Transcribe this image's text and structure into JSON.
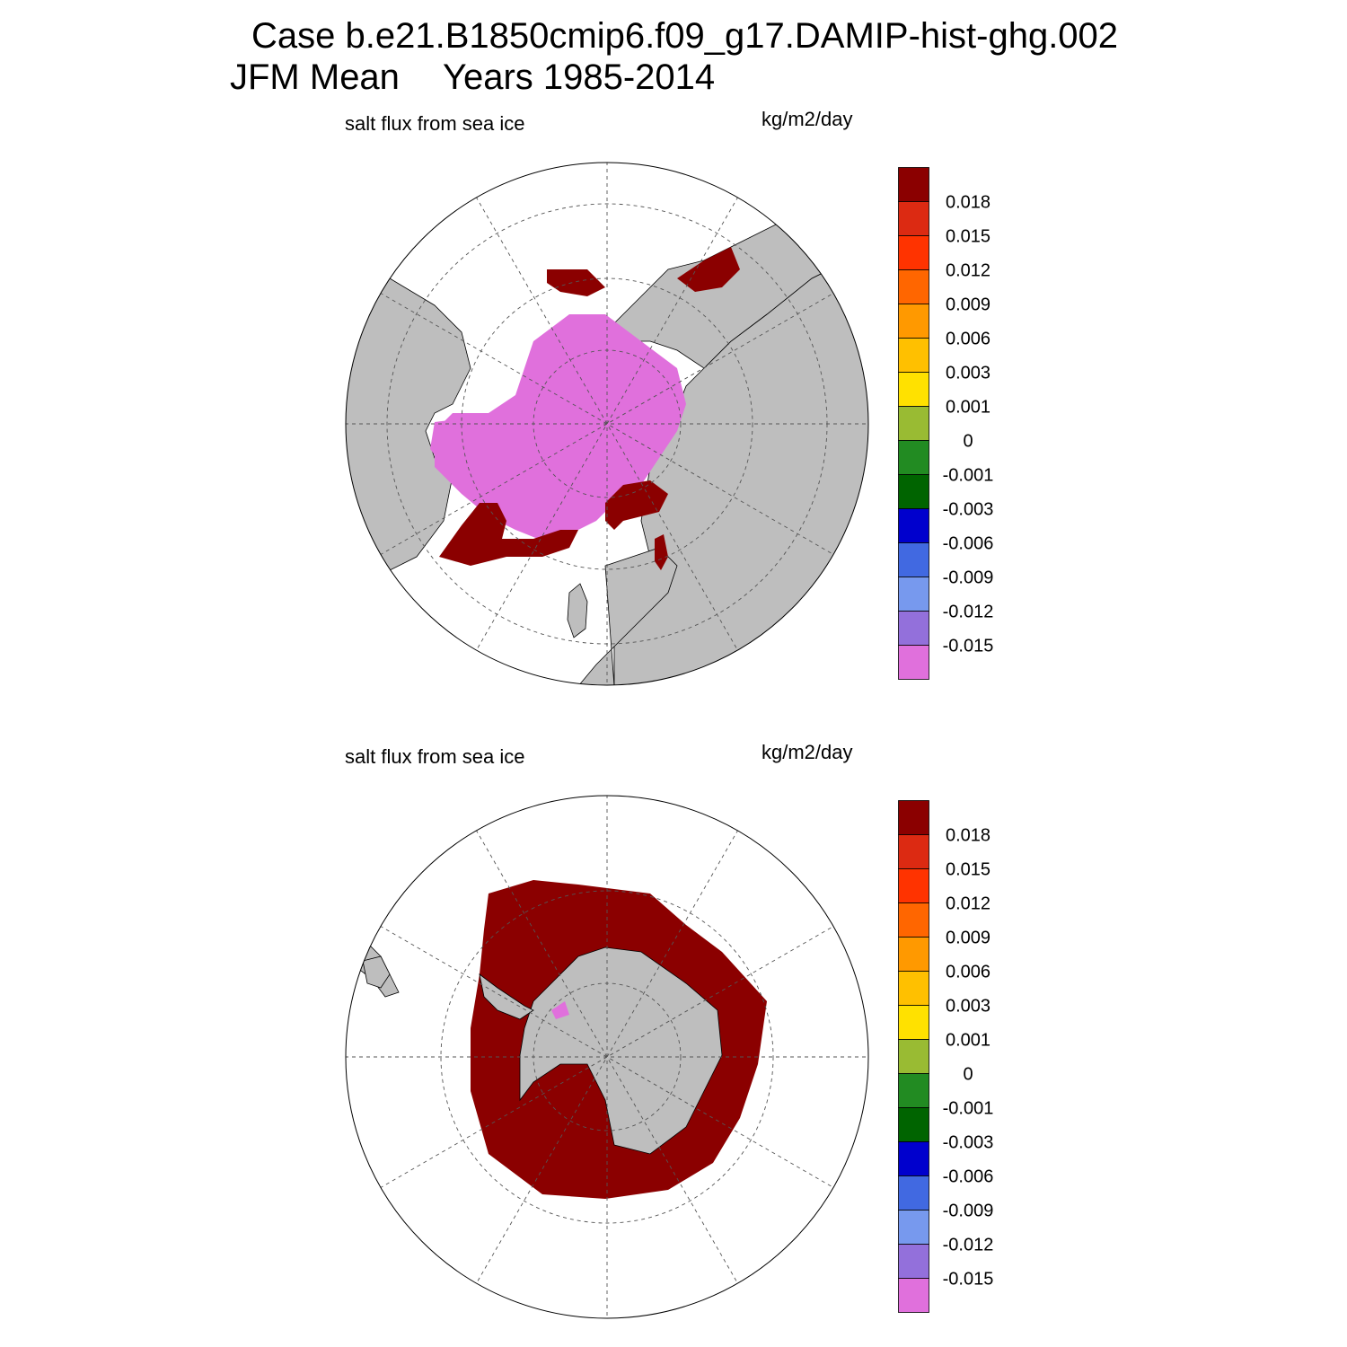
{
  "title": {
    "case": "Case b.e21.B1850cmip6.f09_g17.DAMIP-hist-ghg.002",
    "season": "JFM Mean",
    "years": "Years 1985-2014"
  },
  "panels": [
    {
      "id": "north",
      "variable": "salt flux from sea ice",
      "units": "kg/m2/day"
    },
    {
      "id": "south",
      "variable": "salt flux from sea ice",
      "units": "kg/m2/day"
    }
  ],
  "colorbar": {
    "labels": [
      "0.018",
      "0.015",
      "0.012",
      "0.009",
      "0.006",
      "0.003",
      "0.001",
      "0",
      "-0.001",
      "-0.003",
      "-0.006",
      "-0.009",
      "-0.012",
      "-0.015"
    ],
    "colors": [
      "#8b0000",
      "#dc2a12",
      "#ff3300",
      "#ff6600",
      "#ff9900",
      "#ffc000",
      "#ffe100",
      "#99bb33",
      "#228b22",
      "#006400",
      "#0000cd",
      "#4169e1",
      "#7799ee",
      "#9370db",
      "#e070dc"
    ]
  },
  "colors": {
    "land": "#bebebe",
    "ocean": "#ffffff",
    "high_flux": "#8b0000",
    "low_flux": "#e070dc",
    "grid": "#555555"
  }
}
